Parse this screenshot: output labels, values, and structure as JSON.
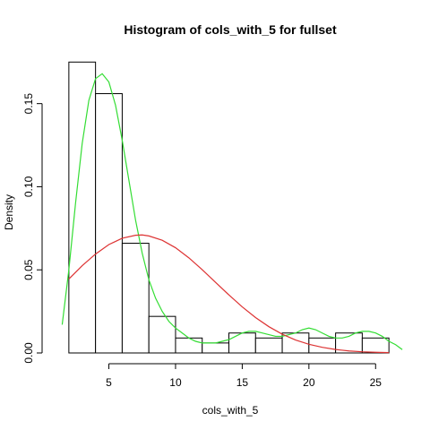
{
  "chart_data": {
    "type": "histogram",
    "title": "Histogram of cols_with_5 for fullset",
    "xlabel": "cols_with_5",
    "ylabel": "Density",
    "xlim": [
      0.8,
      27.4
    ],
    "ylim": [
      0,
      0.18
    ],
    "x_ticks": [
      5,
      10,
      15,
      20,
      25
    ],
    "y_ticks": [
      0.0,
      0.05,
      0.1,
      0.15
    ],
    "x_tick_labels": [
      "5",
      "10",
      "15",
      "20",
      "25"
    ],
    "y_tick_labels": [
      "0.00",
      "0.05",
      "0.10",
      "0.15"
    ],
    "bin_edges": [
      2,
      4,
      6,
      8,
      10,
      12,
      14,
      16,
      18,
      20,
      22,
      24,
      26
    ],
    "densities": [
      0.175,
      0.156,
      0.066,
      0.022,
      0.009,
      0.006,
      0.012,
      0.009,
      0.012,
      0.009,
      0.012,
      0.009
    ],
    "bar_color": "#ffffff",
    "bar_edge_color": "#000000",
    "series": [
      {
        "type": "line",
        "color": "#33dd33",
        "x": [
          1.5,
          2,
          2.5,
          3,
          3.5,
          4,
          4.5,
          5,
          5.5,
          6,
          6.5,
          7,
          7.5,
          8,
          8.5,
          9,
          9.5,
          10,
          10.5,
          11,
          11.5,
          12,
          12.5,
          13,
          13.5,
          14,
          14.5,
          15,
          15.5,
          16,
          16.5,
          17,
          17.5,
          18,
          18.5,
          19,
          19.5,
          20,
          20.5,
          21,
          21.5,
          22,
          22.5,
          23,
          23.5,
          24,
          24.5,
          25,
          25.5,
          26,
          26.5,
          27
        ],
        "y": [
          0.017,
          0.05,
          0.09,
          0.126,
          0.152,
          0.165,
          0.168,
          0.163,
          0.149,
          0.128,
          0.104,
          0.08,
          0.06,
          0.044,
          0.033,
          0.025,
          0.019,
          0.015,
          0.012,
          0.009,
          0.007,
          0.006,
          0.006,
          0.006,
          0.007,
          0.008,
          0.01,
          0.012,
          0.013,
          0.013,
          0.012,
          0.011,
          0.01,
          0.01,
          0.011,
          0.012,
          0.014,
          0.015,
          0.014,
          0.012,
          0.01,
          0.009,
          0.009,
          0.01,
          0.012,
          0.013,
          0.013,
          0.012,
          0.01,
          0.007,
          0.005,
          0.002
        ]
      },
      {
        "type": "line",
        "color": "#dd3333",
        "x": [
          2,
          3,
          4,
          5,
          6,
          7,
          7.5,
          8,
          9,
          10,
          11,
          12,
          13,
          14,
          15,
          16,
          17,
          18,
          19,
          20,
          21,
          22,
          23,
          24,
          25,
          26
        ],
        "y": [
          0.0445,
          0.0525,
          0.0595,
          0.0652,
          0.069,
          0.0708,
          0.071,
          0.0704,
          0.0678,
          0.0633,
          0.0572,
          0.0501,
          0.0425,
          0.0349,
          0.0277,
          0.0213,
          0.0158,
          0.0113,
          0.0078,
          0.0052,
          0.0034,
          0.0021,
          0.0012,
          0.0007,
          0.0004,
          0.0002
        ]
      }
    ]
  }
}
